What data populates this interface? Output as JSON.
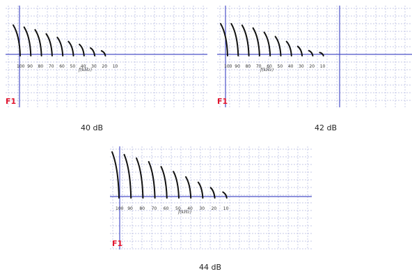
{
  "chart_data": [
    {
      "type": "line",
      "caption": "40 dB",
      "marker_label": "F1",
      "x_axis_label": "f(kHz)",
      "x_ticks": [
        "100",
        "90",
        "80",
        "70",
        "60",
        "50",
        "40",
        "30",
        "20",
        "10"
      ],
      "xlim": [
        105,
        0
      ],
      "traces": [
        {
          "freq": 100,
          "amplitude": 1.0
        },
        {
          "freq": 90,
          "amplitude": 0.93
        },
        {
          "freq": 80,
          "amplitude": 0.84
        },
        {
          "freq": 70,
          "amplitude": 0.7
        },
        {
          "freq": 60,
          "amplitude": 0.58
        },
        {
          "freq": 50,
          "amplitude": 0.44
        },
        {
          "freq": 40,
          "amplitude": 0.34
        },
        {
          "freq": 30,
          "amplitude": 0.22
        },
        {
          "freq": 20,
          "amplitude": 0.12
        }
      ],
      "colors": {
        "grid": "#b4b8e0",
        "axis": "#4a50c8",
        "trace": "#111111",
        "marker": "#e2142d"
      }
    },
    {
      "type": "line",
      "caption": "42 dB",
      "marker_label": "F1",
      "x_axis_label": "f(kHz)",
      "x_ticks": [
        "100",
        "90",
        "80",
        "70",
        "60",
        "50",
        "40",
        "30",
        "20",
        "10"
      ],
      "xlim": [
        105,
        0
      ],
      "traces": [
        {
          "freq": 100,
          "amplitude": 1.0
        },
        {
          "freq": 90,
          "amplitude": 1.0
        },
        {
          "freq": 80,
          "amplitude": 0.95
        },
        {
          "freq": 70,
          "amplitude": 0.86
        },
        {
          "freq": 60,
          "amplitude": 0.72
        },
        {
          "freq": 50,
          "amplitude": 0.58
        },
        {
          "freq": 40,
          "amplitude": 0.42
        },
        {
          "freq": 30,
          "amplitude": 0.26
        },
        {
          "freq": 20,
          "amplitude": 0.12
        },
        {
          "freq": 10,
          "amplitude": 0.06
        }
      ],
      "colors": {
        "grid": "#b4b8e0",
        "axis": "#4a50c8",
        "trace": "#111111",
        "marker": "#e2142d"
      }
    },
    {
      "type": "line",
      "caption": "44 dB",
      "marker_label": "F1",
      "x_axis_label": "f(kHz)",
      "x_ticks": [
        "100",
        "90",
        "80",
        "70",
        "60",
        "50",
        "40",
        "30",
        "20",
        "10"
      ],
      "xlim": [
        105,
        0
      ],
      "traces": [
        {
          "freq": 100,
          "amplitude": 1.0
        },
        {
          "freq": 90,
          "amplitude": 0.94
        },
        {
          "freq": 80,
          "amplitude": 0.86
        },
        {
          "freq": 70,
          "amplitude": 0.78
        },
        {
          "freq": 60,
          "amplitude": 0.67
        },
        {
          "freq": 50,
          "amplitude": 0.56
        },
        {
          "freq": 40,
          "amplitude": 0.44
        },
        {
          "freq": 30,
          "amplitude": 0.32
        },
        {
          "freq": 20,
          "amplitude": 0.2
        },
        {
          "freq": 10,
          "amplitude": 0.1
        }
      ],
      "colors": {
        "grid": "#b4b8e0",
        "axis": "#4a50c8",
        "trace": "#111111",
        "marker": "#e2142d"
      }
    }
  ]
}
